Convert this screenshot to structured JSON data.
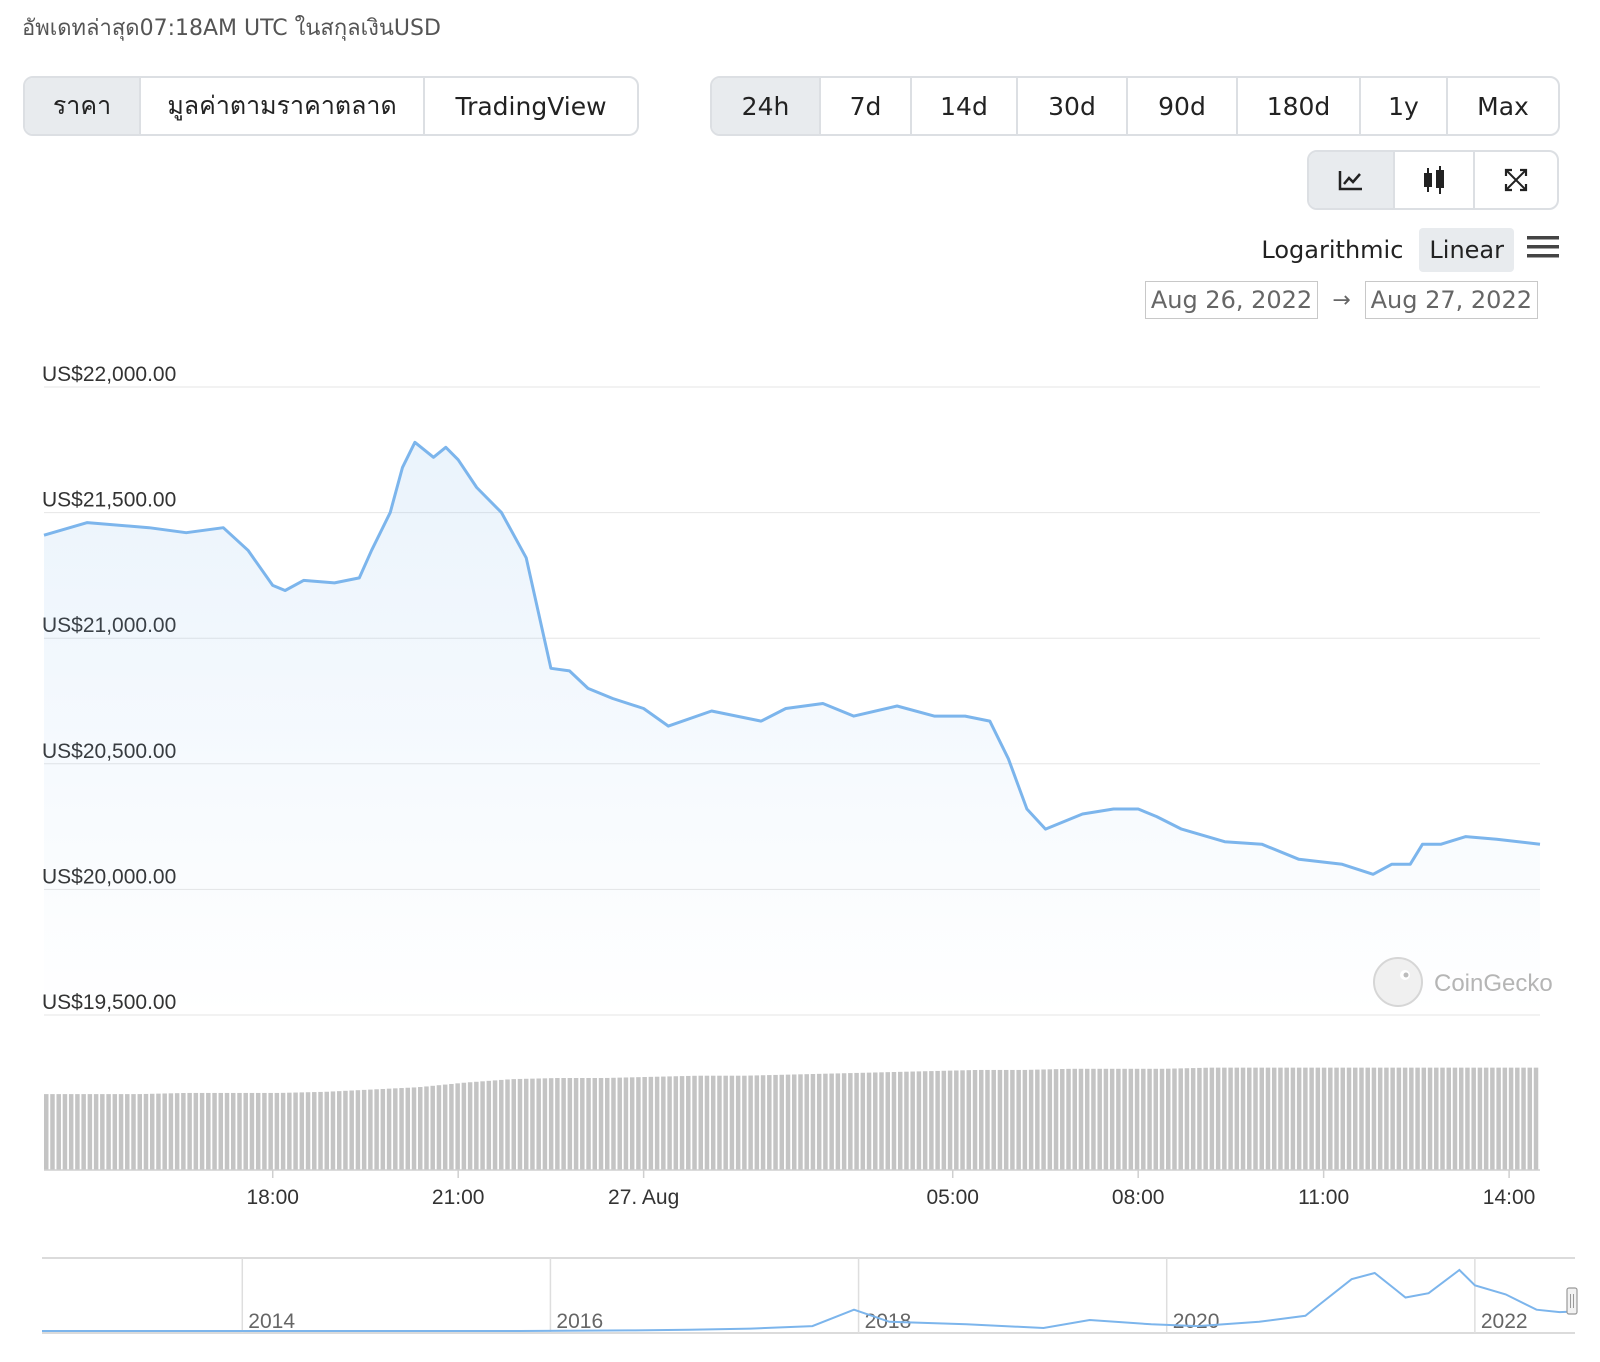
{
  "header": {
    "updated_text": "อัพเดทล่าสุด07:18AM UTC ในสกุลเงินUSD"
  },
  "view_tabs": [
    {
      "label": "ราคา",
      "active": true
    },
    {
      "label": "มูลค่าตามราคาตลาด",
      "active": false
    },
    {
      "label": "TradingView",
      "active": false
    }
  ],
  "range_tabs": [
    {
      "label": "24h",
      "active": true
    },
    {
      "label": "7d",
      "active": false
    },
    {
      "label": "14d",
      "active": false
    },
    {
      "label": "30d",
      "active": false
    },
    {
      "label": "90d",
      "active": false
    },
    {
      "label": "180d",
      "active": false
    },
    {
      "label": "1y",
      "active": false
    },
    {
      "label": "Max",
      "active": false
    }
  ],
  "chart_type_buttons": [
    {
      "icon": "line-chart-icon",
      "active": true
    },
    {
      "icon": "candlestick-icon",
      "active": false
    },
    {
      "icon": "fullscreen-icon",
      "active": false
    }
  ],
  "scale": {
    "logarithmic_label": "Logarithmic",
    "linear_label": "Linear",
    "active": "Linear",
    "menu_icon": "hamburger-menu-icon"
  },
  "date_range": {
    "from": "Aug 26, 2022",
    "arrow": "→",
    "to": "Aug 27, 2022"
  },
  "watermark": "CoinGecko",
  "colors": {
    "line": "#7cb5ec",
    "volume": "#c4c4c4",
    "grid": "#e6e6e6",
    "active_tab": "#e8ebee"
  },
  "chart_data": {
    "type": "line",
    "ylim": [
      19500,
      22000
    ],
    "y_ticks": [
      22000,
      21500,
      21000,
      20500,
      20000,
      19500
    ],
    "y_tick_labels": [
      "US$22,000.00",
      "US$21,500.00",
      "US$21,000.00",
      "US$20,500.00",
      "US$20,000.00",
      "US$19,500.00"
    ],
    "x_ticks": [
      18,
      21,
      24,
      29,
      32,
      35,
      38
    ],
    "x_tick_labels": [
      "18:00",
      "21:00",
      "27. Aug",
      "05:00",
      "08:00",
      "11:00",
      "14:00"
    ],
    "xlim": [
      14.3,
      38.5
    ],
    "series": [
      {
        "x": [
          14.3,
          15.0,
          16.0,
          16.6,
          17.2,
          17.6,
          18.0,
          18.2,
          18.5,
          19.0,
          19.4,
          19.6,
          19.9,
          20.1,
          20.3,
          20.6,
          20.8,
          21.0,
          21.3,
          21.7,
          22.1,
          22.5,
          22.8,
          23.1,
          23.5,
          24.0,
          24.4,
          25.1,
          25.9,
          26.3,
          26.9,
          27.4,
          28.1,
          28.7,
          29.2,
          29.6,
          29.9,
          30.2,
          30.5,
          31.1,
          31.6,
          32.0,
          32.3,
          32.7,
          33.4,
          34.0,
          34.6,
          35.3,
          35.8,
          36.1,
          36.4,
          36.6,
          36.9,
          37.3,
          37.8,
          38.5
        ],
        "y": [
          21410,
          21460,
          21440,
          21420,
          21440,
          21350,
          21210,
          21190,
          21230,
          21220,
          21240,
          21350,
          21500,
          21680,
          21780,
          21720,
          21760,
          21710,
          21600,
          21500,
          21320,
          20880,
          20870,
          20800,
          20760,
          20720,
          20650,
          20710,
          20670,
          20720,
          20740,
          20690,
          20730,
          20690,
          20690,
          20670,
          20520,
          20320,
          20240,
          20300,
          20320,
          20320,
          20290,
          20240,
          20190,
          20180,
          20120,
          20100,
          20060,
          20100,
          20100,
          20180,
          20180,
          20210,
          20200,
          20180
        ]
      }
    ],
    "volume_relative": [
      0.66,
      0.66,
      0.66,
      0.67,
      0.67,
      0.67,
      0.68,
      0.7,
      0.72,
      0.76,
      0.79,
      0.8,
      0.8,
      0.81,
      0.82,
      0.82,
      0.83,
      0.84,
      0.85,
      0.86,
      0.87,
      0.87,
      0.88,
      0.88,
      0.88,
      0.89,
      0.89,
      0.89,
      0.89,
      0.89,
      0.89,
      0.89,
      0.89
    ],
    "navigator": {
      "x_ticks": [
        2014,
        2016,
        2018,
        2020,
        2022
      ],
      "x_tick_labels": [
        "2014",
        "2016",
        "2018",
        "2020",
        "2022"
      ],
      "x": [
        2012.7,
        2013.9,
        2014.8,
        2015.8,
        2016.5,
        2016.9,
        2017.3,
        2017.7,
        2017.97,
        2018.2,
        2018.7,
        2019.2,
        2019.5,
        2019.9,
        2020.2,
        2020.6,
        2020.9,
        2021.0,
        2021.2,
        2021.35,
        2021.55,
        2021.7,
        2021.9,
        2022.0,
        2022.2,
        2022.4,
        2022.55,
        2022.65
      ],
      "y": [
        0,
        0,
        0,
        0,
        0.01,
        0.02,
        0.04,
        0.08,
        0.35,
        0.15,
        0.11,
        0.05,
        0.18,
        0.11,
        0.08,
        0.15,
        0.25,
        0.45,
        0.85,
        0.95,
        0.55,
        0.62,
        1.0,
        0.75,
        0.6,
        0.35,
        0.31,
        0.32
      ]
    }
  }
}
